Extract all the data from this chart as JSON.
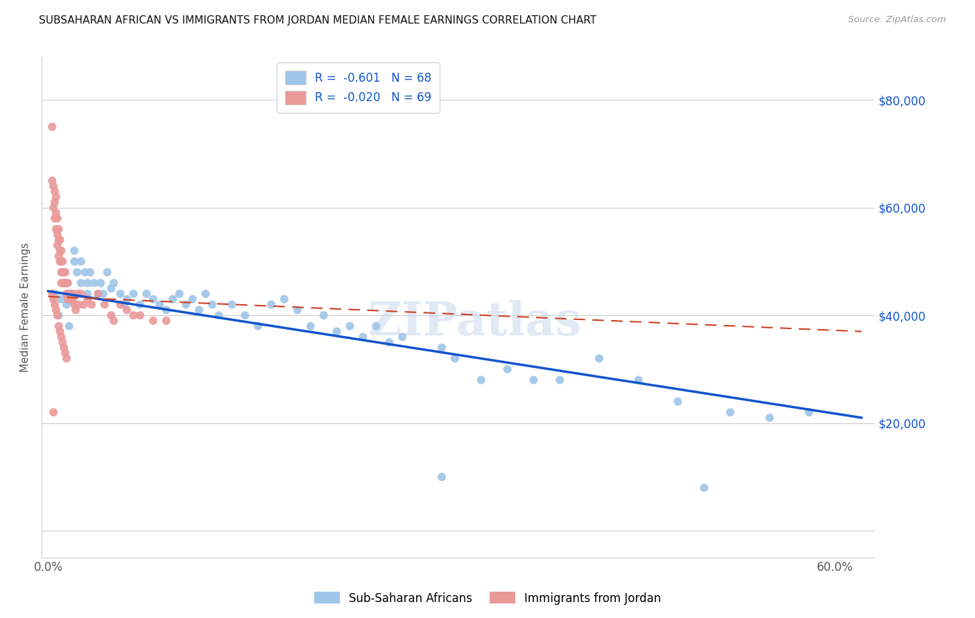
{
  "title": "SUBSAHARAN AFRICAN VS IMMIGRANTS FROM JORDAN MEDIAN FEMALE EARNINGS CORRELATION CHART",
  "source": "Source: ZipAtlas.com",
  "ylabel": "Median Female Earnings",
  "y_ticks": [
    0,
    20000,
    40000,
    60000,
    80000
  ],
  "y_tick_labels": [
    "",
    "$20,000",
    "$40,000",
    "$60,000",
    "$80,000"
  ],
  "xlim": [
    -0.005,
    0.63
  ],
  "ylim": [
    -5000,
    88000
  ],
  "legend_r1": "-0.601",
  "legend_n1": "68",
  "legend_r2": "-0.020",
  "legend_n2": "69",
  "blue_color": "#9fc5e8",
  "pink_color": "#ea9999",
  "line_blue": "#1155cc",
  "line_pink": "#cc4125",
  "axis_label_color": "#1155cc",
  "watermark": "ZIPatlas",
  "blue_line_x0": 0.0,
  "blue_line_y0": 44500,
  "blue_line_x1": 0.62,
  "blue_line_y1": 21000,
  "pink_line_x0": 0.0,
  "pink_line_y0": 43500,
  "pink_line_x1": 0.62,
  "pink_line_y1": 37000,
  "blue_x": [
    0.005,
    0.008,
    0.01,
    0.012,
    0.014,
    0.016,
    0.018,
    0.02,
    0.02,
    0.022,
    0.025,
    0.025,
    0.028,
    0.03,
    0.03,
    0.032,
    0.035,
    0.038,
    0.04,
    0.042,
    0.045,
    0.048,
    0.05,
    0.055,
    0.058,
    0.06,
    0.065,
    0.07,
    0.075,
    0.08,
    0.085,
    0.09,
    0.095,
    0.1,
    0.105,
    0.11,
    0.115,
    0.12,
    0.125,
    0.13,
    0.14,
    0.15,
    0.16,
    0.17,
    0.18,
    0.19,
    0.2,
    0.21,
    0.22,
    0.23,
    0.24,
    0.25,
    0.26,
    0.27,
    0.3,
    0.31,
    0.33,
    0.35,
    0.37,
    0.39,
    0.42,
    0.45,
    0.48,
    0.52,
    0.55,
    0.58,
    0.3,
    0.5
  ],
  "blue_y": [
    44000,
    40000,
    43000,
    46000,
    42000,
    38000,
    44000,
    50000,
    52000,
    48000,
    46000,
    50000,
    48000,
    46000,
    44000,
    48000,
    46000,
    44000,
    46000,
    44000,
    48000,
    45000,
    46000,
    44000,
    42000,
    43000,
    44000,
    42000,
    44000,
    43000,
    42000,
    41000,
    43000,
    44000,
    42000,
    43000,
    41000,
    44000,
    42000,
    40000,
    42000,
    40000,
    38000,
    42000,
    43000,
    41000,
    38000,
    40000,
    37000,
    38000,
    36000,
    38000,
    35000,
    36000,
    34000,
    32000,
    28000,
    30000,
    28000,
    28000,
    32000,
    28000,
    24000,
    22000,
    21000,
    22000,
    10000,
    8000
  ],
  "pink_x": [
    0.003,
    0.003,
    0.004,
    0.004,
    0.005,
    0.005,
    0.005,
    0.006,
    0.006,
    0.006,
    0.007,
    0.007,
    0.007,
    0.008,
    0.008,
    0.008,
    0.009,
    0.009,
    0.009,
    0.01,
    0.01,
    0.01,
    0.01,
    0.011,
    0.011,
    0.011,
    0.012,
    0.012,
    0.013,
    0.013,
    0.014,
    0.014,
    0.015,
    0.015,
    0.016,
    0.017,
    0.018,
    0.019,
    0.02,
    0.021,
    0.022,
    0.023,
    0.025,
    0.027,
    0.03,
    0.033,
    0.038,
    0.043,
    0.048,
    0.055,
    0.06,
    0.065,
    0.07,
    0.08,
    0.09,
    0.003,
    0.004,
    0.005,
    0.006,
    0.007,
    0.008,
    0.009,
    0.01,
    0.011,
    0.012,
    0.013,
    0.014,
    0.004,
    0.05
  ],
  "pink_y": [
    75000,
    65000,
    64000,
    60000,
    63000,
    61000,
    58000,
    62000,
    59000,
    56000,
    58000,
    55000,
    53000,
    56000,
    54000,
    51000,
    54000,
    52000,
    50000,
    52000,
    50000,
    48000,
    46000,
    50000,
    48000,
    46000,
    48000,
    46000,
    48000,
    46000,
    46000,
    44000,
    46000,
    43000,
    44000,
    43000,
    44000,
    43000,
    42000,
    41000,
    44000,
    42000,
    44000,
    42000,
    43000,
    42000,
    44000,
    42000,
    40000,
    42000,
    41000,
    40000,
    40000,
    39000,
    39000,
    44000,
    43000,
    42000,
    41000,
    40000,
    38000,
    37000,
    36000,
    35000,
    34000,
    33000,
    32000,
    22000,
    39000
  ]
}
